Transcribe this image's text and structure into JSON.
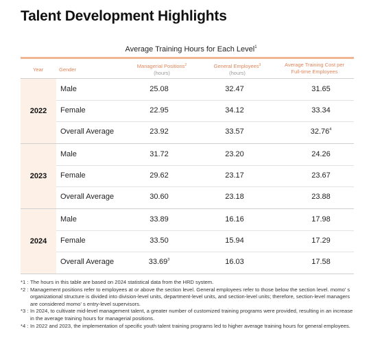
{
  "title": "Talent Development Highlights",
  "table_title": "Average Training Hours for Each Level",
  "table_title_sup": "1",
  "headers": {
    "year": "Year",
    "gender": "Gender",
    "managerial": "Managerial Positions",
    "managerial_sup": "2",
    "managerial_unit": "(hours)",
    "general": "General Employees",
    "general_sup": "3",
    "general_unit": "(hours)",
    "cost_line1": "Average Training Cost per",
    "cost_line2": "Full-time Employees"
  },
  "groups": [
    {
      "year": "2022",
      "rows": [
        {
          "gender": "Male",
          "managerial": "25.08",
          "managerial_sup": "",
          "general": "32.47",
          "cost": "31.65",
          "cost_sup": ""
        },
        {
          "gender": "Female",
          "managerial": "22.95",
          "managerial_sup": "",
          "general": "34.12",
          "cost": "33.34",
          "cost_sup": ""
        },
        {
          "gender": "Overall Average",
          "managerial": "23.92",
          "managerial_sup": "",
          "general": "33.57",
          "cost": "32.76",
          "cost_sup": "4"
        }
      ]
    },
    {
      "year": "2023",
      "rows": [
        {
          "gender": "Male",
          "managerial": "31.72",
          "managerial_sup": "",
          "general": "23.20",
          "cost": "24.26",
          "cost_sup": ""
        },
        {
          "gender": "Female",
          "managerial": "29.62",
          "managerial_sup": "",
          "general": "23.17",
          "cost": "23.67",
          "cost_sup": ""
        },
        {
          "gender": "Overall Average",
          "managerial": "30.60",
          "managerial_sup": "",
          "general": "23.18",
          "cost": "23.88",
          "cost_sup": ""
        }
      ]
    },
    {
      "year": "2024",
      "rows": [
        {
          "gender": "Male",
          "managerial": "33.89",
          "managerial_sup": "",
          "general": "16.16",
          "cost": "17.98",
          "cost_sup": ""
        },
        {
          "gender": "Female",
          "managerial": "33.50",
          "managerial_sup": "",
          "general": "15.94",
          "cost": "17.29",
          "cost_sup": ""
        },
        {
          "gender": "Overall Average",
          "managerial": "33.69",
          "managerial_sup": "3",
          "general": "16.03",
          "cost": "17.58",
          "cost_sup": ""
        }
      ]
    }
  ],
  "notes": [
    {
      "marker": "*1 :",
      "text": "The hours in this table are based on 2024 statistical data from the HRD system."
    },
    {
      "marker": "*2 :",
      "text": "Management positions refer to employees at or above the section level. General employees refer to those below the section level. momo' s organizational structure is divided into division-level units, department-level units, and section-level units; therefore, section-level managers are considered momo' s entry-level supervisors."
    },
    {
      "marker": "*3 :",
      "text": "In 2024, to cultivate mid-level management talent, a greater number of customized training programs were provided, resulting in an increase in the average training hours for managerial positions."
    },
    {
      "marker": "*4 :",
      "text": "In 2022 and 2023, the implementation of specific youth talent training programs led to higher average training hours for general employees."
    }
  ],
  "colors": {
    "accent": "#f0b593",
    "header_text": "#e0865a",
    "year_bg": "#fdf0e7"
  }
}
